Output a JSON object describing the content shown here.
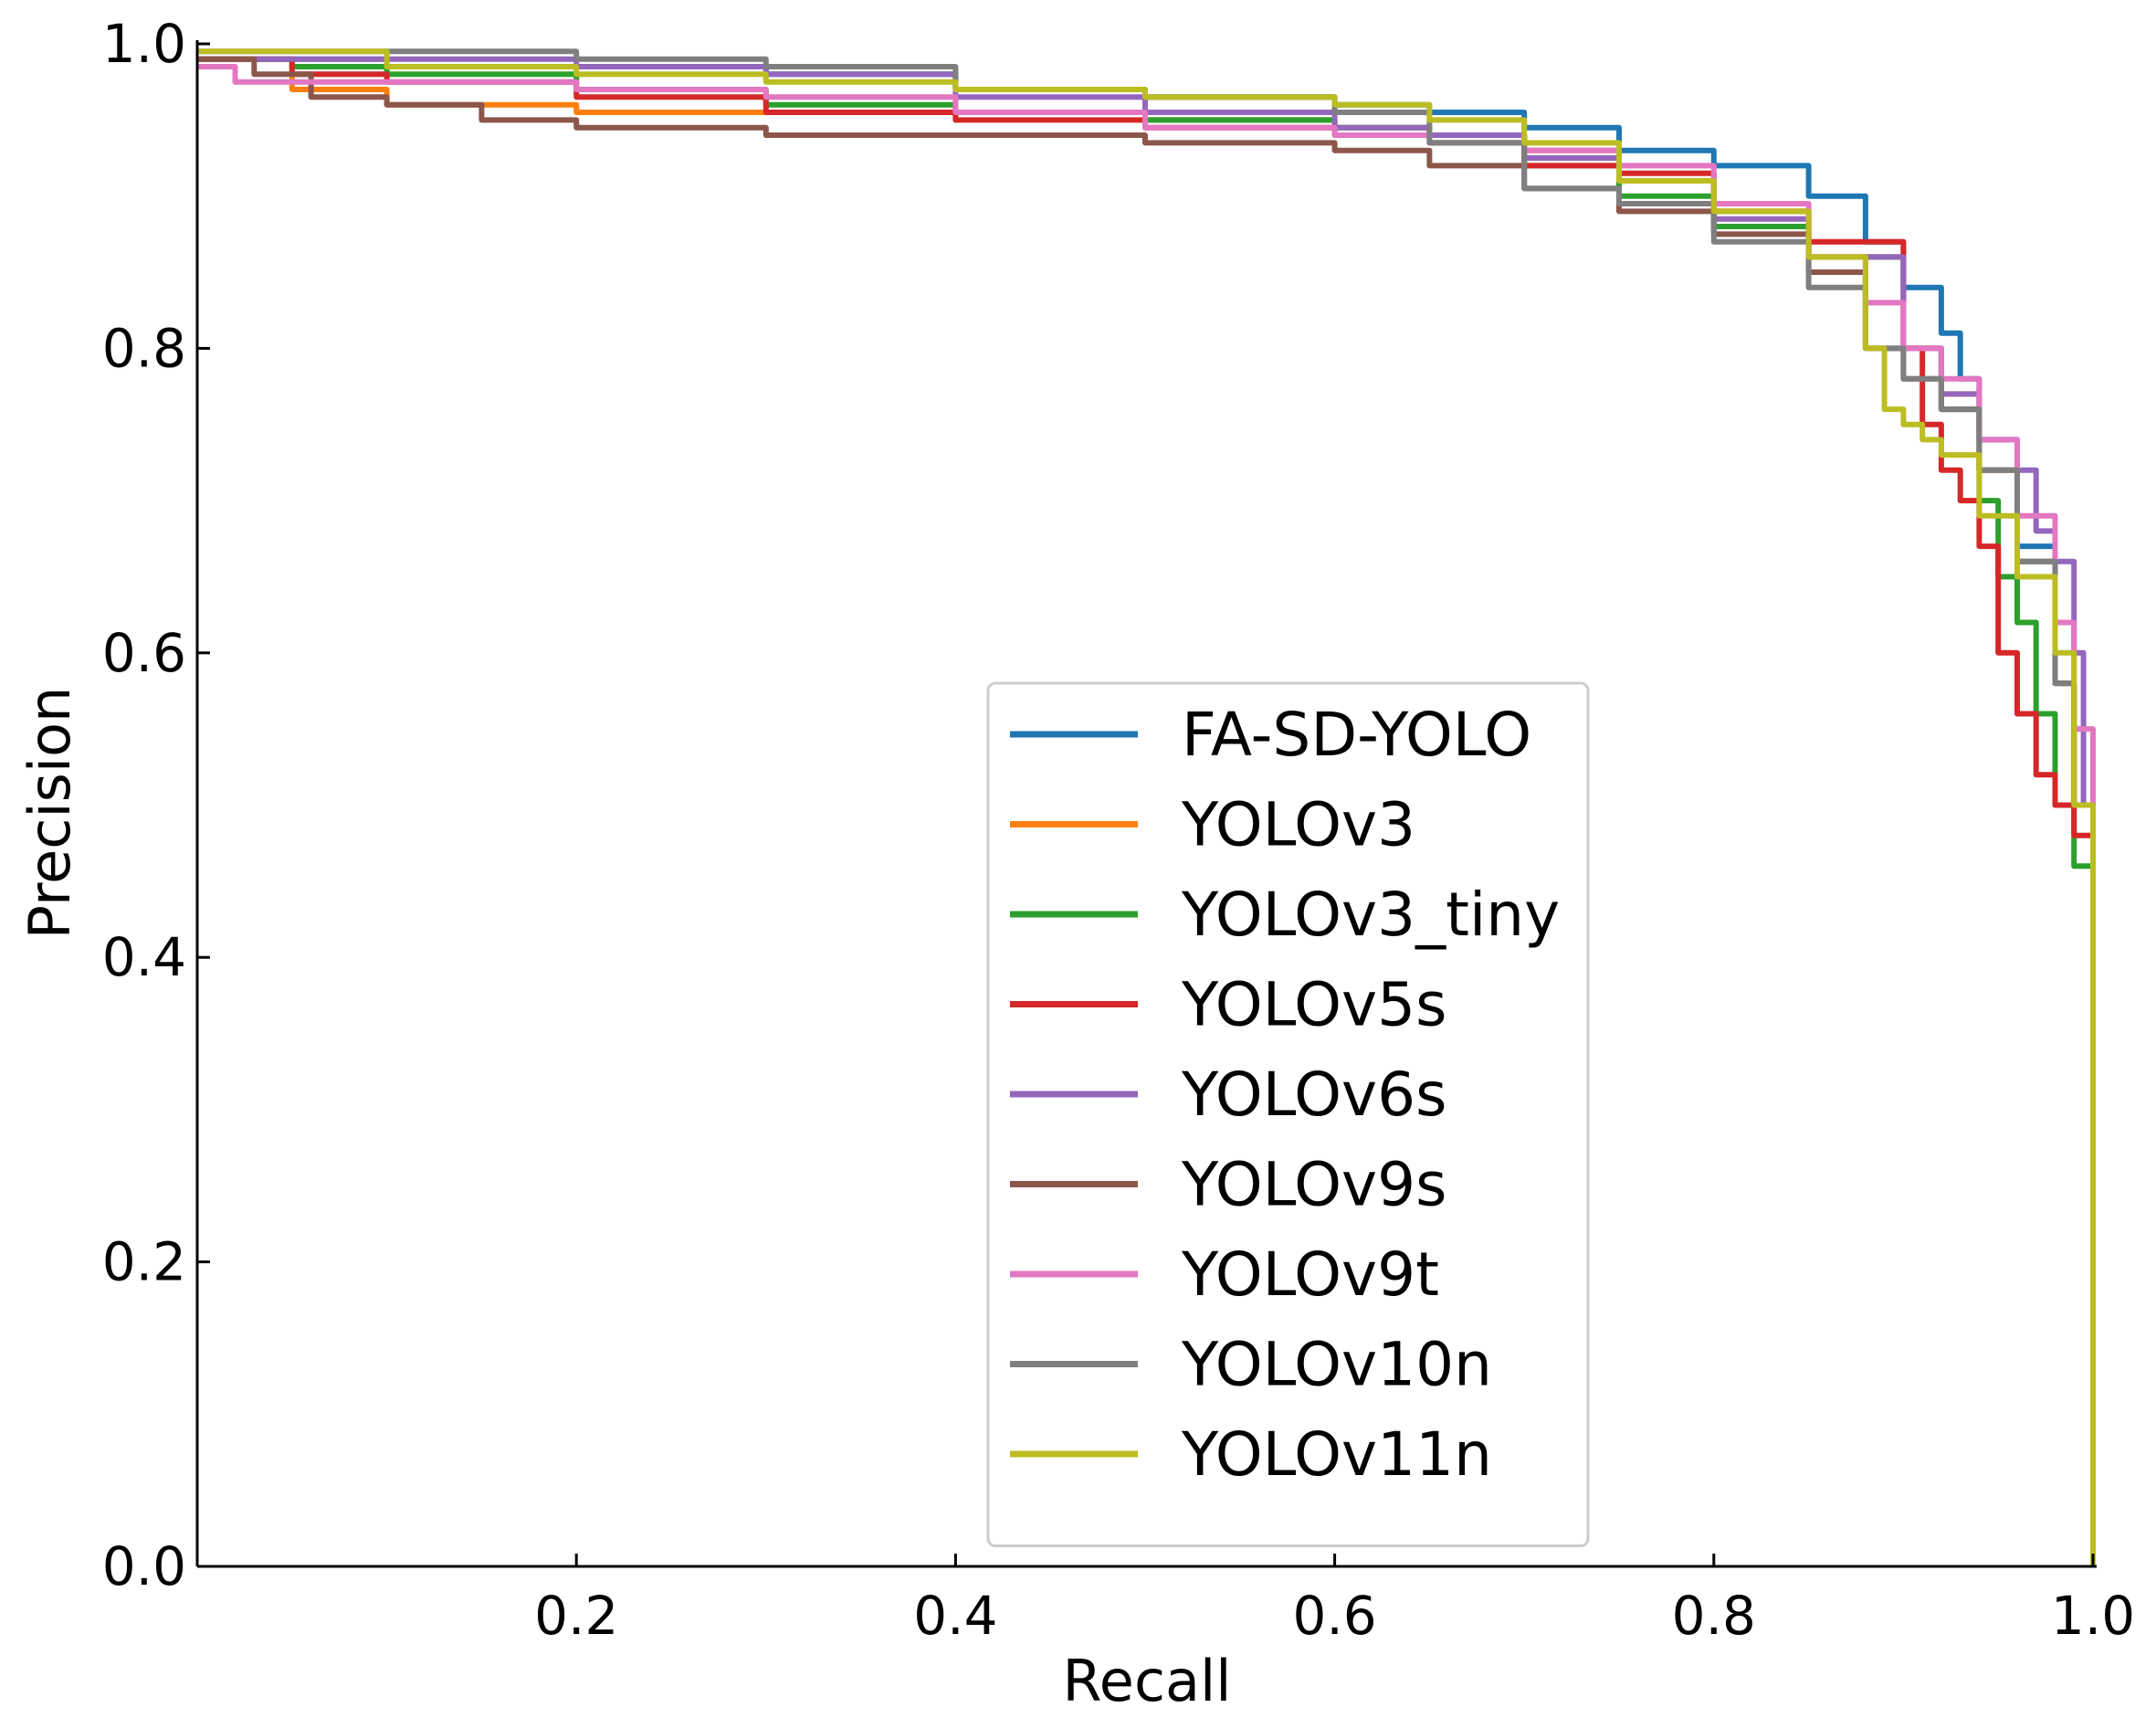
{
  "chart_data": {
    "type": "line",
    "title": "",
    "xlabel": "Recall",
    "ylabel": "Precision",
    "xlim": [
      0.0,
      1.0
    ],
    "ylim": [
      0.0,
      1.0
    ],
    "xticks": [
      {
        "value": 0.2,
        "label": "0.2"
      },
      {
        "value": 0.4,
        "label": "0.4"
      },
      {
        "value": 0.6,
        "label": "0.6"
      },
      {
        "value": 0.8,
        "label": "0.8"
      },
      {
        "value": 1.0,
        "label": "1.0"
      }
    ],
    "yticks": [
      {
        "value": 0.0,
        "label": "0.0"
      },
      {
        "value": 0.2,
        "label": "0.2"
      },
      {
        "value": 0.4,
        "label": "0.4"
      },
      {
        "value": 0.6,
        "label": "0.6"
      },
      {
        "value": 0.8,
        "label": "0.8"
      },
      {
        "value": 1.0,
        "label": "1.0"
      }
    ],
    "grid": false,
    "legend_position": "center-right",
    "series": [
      {
        "name": "FA-SD-YOLO",
        "color": "#1f77b4",
        "x": [
          0.0,
          0.1,
          0.2,
          0.3,
          0.4,
          0.5,
          0.6,
          0.65,
          0.7,
          0.75,
          0.8,
          0.85,
          0.88,
          0.9,
          0.92,
          0.93,
          0.94,
          0.96,
          0.98,
          0.99,
          1.0,
          1.0
        ],
        "y": [
          0.99,
          0.985,
          0.985,
          0.98,
          0.97,
          0.965,
          0.96,
          0.955,
          0.945,
          0.93,
          0.92,
          0.9,
          0.87,
          0.84,
          0.81,
          0.78,
          0.74,
          0.67,
          0.58,
          0.5,
          0.4,
          0.0
        ]
      },
      {
        "name": "YOLOv3",
        "color": "#ff7f0e",
        "x": [
          0.0,
          0.05,
          0.1,
          0.2,
          0.3,
          0.4,
          0.5,
          0.6,
          0.65,
          0.7,
          0.75,
          0.8,
          0.85,
          0.9,
          0.92,
          0.94,
          0.96,
          0.98,
          0.99,
          1.0,
          1.0
        ],
        "y": [
          0.99,
          0.97,
          0.96,
          0.955,
          0.955,
          0.955,
          0.95,
          0.945,
          0.94,
          0.93,
          0.91,
          0.89,
          0.86,
          0.8,
          0.77,
          0.72,
          0.66,
          0.58,
          0.5,
          0.38,
          0.0
        ]
      },
      {
        "name": "YOLOv3_tiny",
        "color": "#2ca02c",
        "x": [
          0.0,
          0.05,
          0.1,
          0.2,
          0.3,
          0.4,
          0.5,
          0.6,
          0.65,
          0.7,
          0.75,
          0.8,
          0.85,
          0.9,
          0.92,
          0.94,
          0.95,
          0.96,
          0.97,
          0.98,
          0.99,
          1.0,
          1.0
        ],
        "y": [
          0.99,
          0.985,
          0.98,
          0.97,
          0.96,
          0.955,
          0.95,
          0.945,
          0.94,
          0.92,
          0.9,
          0.88,
          0.86,
          0.8,
          0.76,
          0.7,
          0.65,
          0.62,
          0.56,
          0.5,
          0.46,
          0.42,
          0.0
        ]
      },
      {
        "name": "YOLOv5s",
        "color": "#d62728",
        "x": [
          0.0,
          0.05,
          0.1,
          0.2,
          0.3,
          0.4,
          0.5,
          0.6,
          0.65,
          0.7,
          0.75,
          0.8,
          0.85,
          0.9,
          0.91,
          0.92,
          0.93,
          0.94,
          0.95,
          0.96,
          0.97,
          0.98,
          0.99,
          1.0,
          1.0
        ],
        "y": [
          0.99,
          0.98,
          0.975,
          0.965,
          0.955,
          0.95,
          0.945,
          0.94,
          0.935,
          0.92,
          0.915,
          0.89,
          0.87,
          0.8,
          0.75,
          0.72,
          0.7,
          0.67,
          0.6,
          0.56,
          0.52,
          0.5,
          0.48,
          0.4,
          0.0
        ]
      },
      {
        "name": "YOLOv6s",
        "color": "#9467bd",
        "x": [
          0.0,
          0.05,
          0.1,
          0.2,
          0.3,
          0.4,
          0.5,
          0.6,
          0.65,
          0.7,
          0.75,
          0.8,
          0.85,
          0.9,
          0.92,
          0.94,
          0.96,
          0.97,
          0.98,
          0.99,
          0.995,
          1.0,
          1.0
        ],
        "y": [
          0.99,
          0.99,
          0.99,
          0.985,
          0.98,
          0.965,
          0.955,
          0.945,
          0.94,
          0.925,
          0.91,
          0.885,
          0.86,
          0.8,
          0.77,
          0.74,
          0.72,
          0.68,
          0.66,
          0.6,
          0.5,
          0.4,
          0.0
        ]
      },
      {
        "name": "YOLOv9s",
        "color": "#8c564b",
        "x": [
          0.0,
          0.03,
          0.06,
          0.1,
          0.15,
          0.2,
          0.3,
          0.4,
          0.5,
          0.6,
          0.65,
          0.7,
          0.75,
          0.8,
          0.85,
          0.88,
          0.9,
          0.92,
          0.94,
          0.96,
          0.98,
          0.99,
          1.0,
          1.0
        ],
        "y": [
          0.99,
          0.98,
          0.965,
          0.96,
          0.95,
          0.945,
          0.94,
          0.94,
          0.935,
          0.93,
          0.92,
          0.905,
          0.89,
          0.875,
          0.85,
          0.8,
          0.78,
          0.76,
          0.72,
          0.66,
          0.58,
          0.5,
          0.35,
          0.0
        ]
      },
      {
        "name": "YOLOv9t",
        "color": "#e377c2",
        "x": [
          0.0,
          0.02,
          0.05,
          0.1,
          0.2,
          0.3,
          0.4,
          0.5,
          0.6,
          0.65,
          0.7,
          0.75,
          0.8,
          0.85,
          0.88,
          0.9,
          0.92,
          0.94,
          0.96,
          0.98,
          0.99,
          1.0,
          1.0
        ],
        "y": [
          0.985,
          0.975,
          0.975,
          0.975,
          0.97,
          0.965,
          0.955,
          0.945,
          0.94,
          0.935,
          0.93,
          0.92,
          0.895,
          0.86,
          0.83,
          0.8,
          0.78,
          0.74,
          0.69,
          0.62,
          0.55,
          0.38,
          0.0
        ]
      },
      {
        "name": "YOLOv10n",
        "color": "#7f7f7f",
        "x": [
          0.0,
          0.05,
          0.1,
          0.15,
          0.2,
          0.3,
          0.4,
          0.5,
          0.6,
          0.65,
          0.7,
          0.75,
          0.8,
          0.85,
          0.88,
          0.9,
          0.92,
          0.94,
          0.96,
          0.98,
          0.99,
          1.0,
          1.0
        ],
        "y": [
          0.995,
          0.995,
          0.995,
          0.995,
          0.99,
          0.985,
          0.97,
          0.965,
          0.955,
          0.935,
          0.905,
          0.895,
          0.87,
          0.84,
          0.8,
          0.78,
          0.76,
          0.72,
          0.66,
          0.58,
          0.5,
          0.4,
          0.0
        ]
      },
      {
        "name": "YOLOv11n",
        "color": "#bcbd22",
        "x": [
          0.0,
          0.06,
          0.1,
          0.2,
          0.3,
          0.4,
          0.5,
          0.6,
          0.65,
          0.7,
          0.75,
          0.8,
          0.85,
          0.88,
          0.89,
          0.9,
          0.91,
          0.92,
          0.94,
          0.96,
          0.98,
          0.99,
          1.0,
          1.0
        ],
        "y": [
          0.995,
          0.995,
          0.985,
          0.98,
          0.975,
          0.97,
          0.965,
          0.96,
          0.95,
          0.935,
          0.91,
          0.89,
          0.86,
          0.8,
          0.76,
          0.75,
          0.74,
          0.73,
          0.69,
          0.65,
          0.6,
          0.5,
          0.38,
          0.0
        ]
      }
    ]
  }
}
